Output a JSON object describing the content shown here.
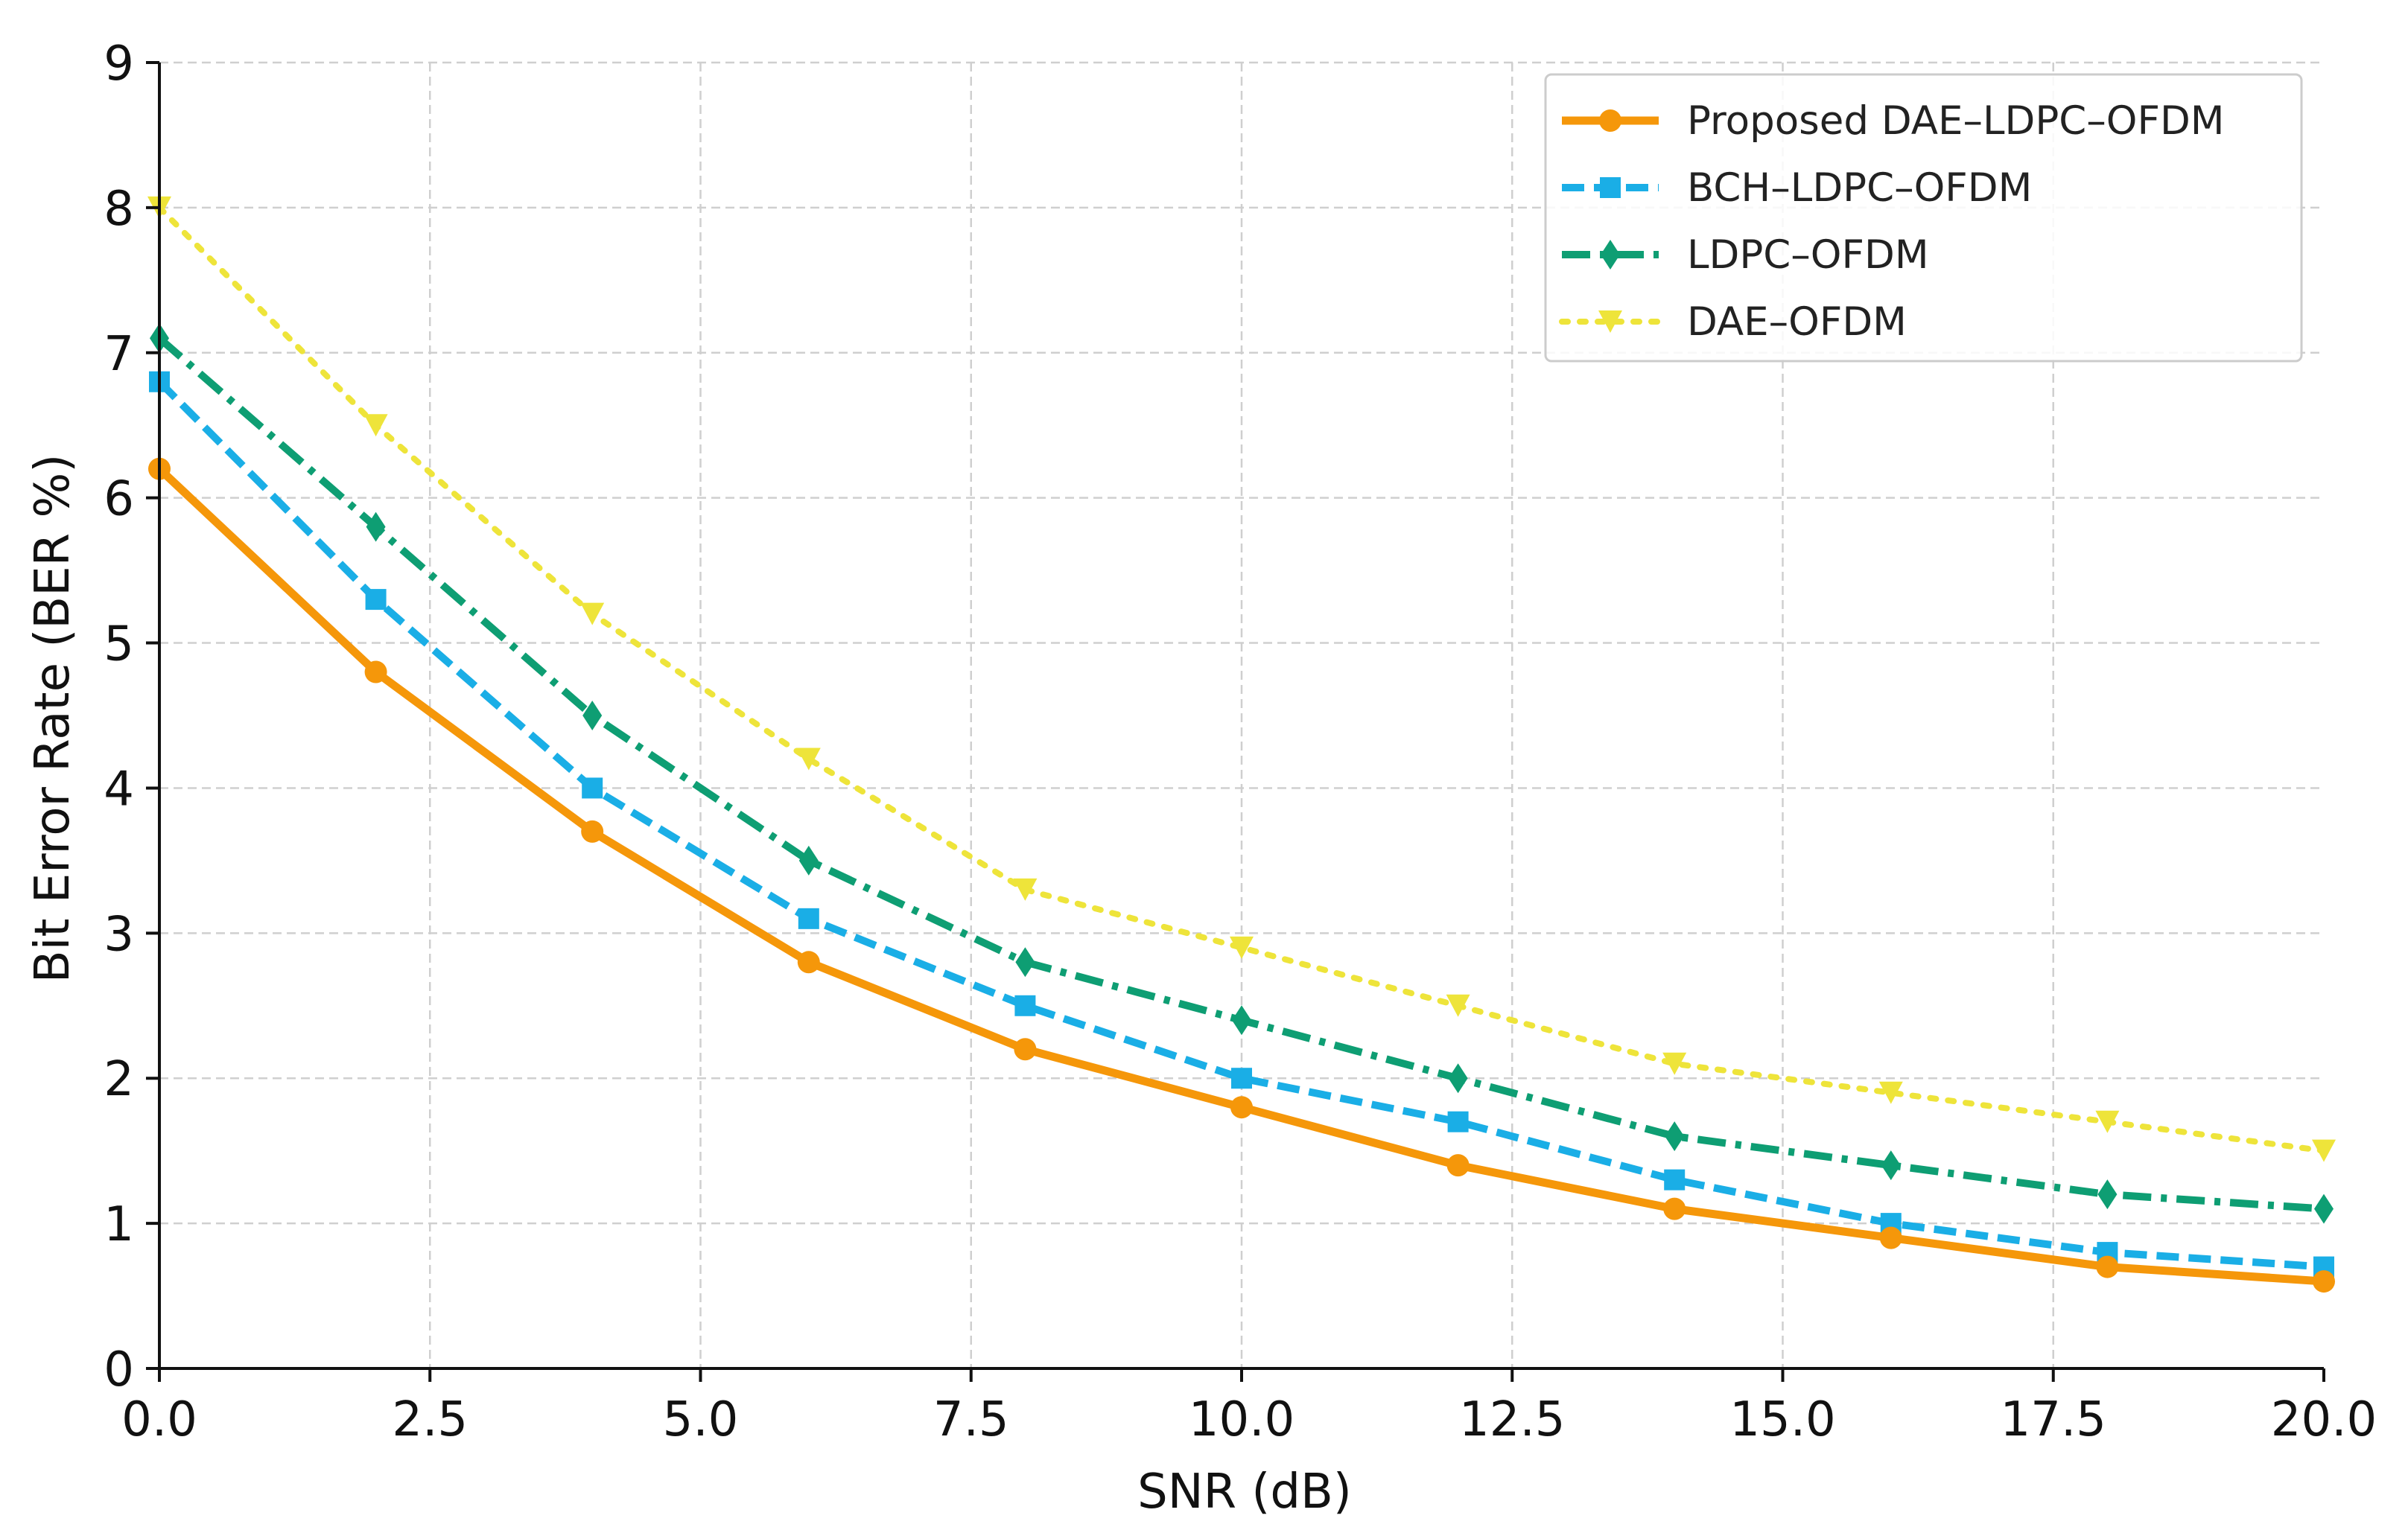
{
  "chart_data": {
    "type": "line",
    "title": "",
    "xlabel": "SNR (dB)",
    "ylabel": "Bit Error Rate (BER %)",
    "xlim": [
      0,
      20
    ],
    "ylim": [
      0,
      9
    ],
    "grid": true,
    "legend_position": "top-right",
    "x_ticks": [
      "0.0",
      "2.5",
      "5.0",
      "7.5",
      "10.0",
      "12.5",
      "15.0",
      "17.5",
      "20.0"
    ],
    "y_ticks": [
      "0",
      "1",
      "2",
      "3",
      "4",
      "5",
      "6",
      "7",
      "8",
      "9"
    ],
    "x": [
      0,
      2,
      4,
      6,
      8,
      10,
      12,
      14,
      16,
      18,
      20
    ],
    "series": [
      {
        "name": "Proposed DAE–LDPC–OFDM",
        "values": [
          6.2,
          4.8,
          3.7,
          2.8,
          2.2,
          1.8,
          1.4,
          1.1,
          0.9,
          0.7,
          0.6
        ],
        "color": "#F5970A",
        "line_style": "solid",
        "marker": "circle"
      },
      {
        "name": "BCH–LDPC–OFDM",
        "values": [
          6.8,
          5.3,
          4.0,
          3.1,
          2.5,
          2.0,
          1.7,
          1.3,
          1.0,
          0.8,
          0.7
        ],
        "color": "#1AAEE6",
        "line_style": "dashed",
        "marker": "square"
      },
      {
        "name": "LDPC–OFDM",
        "values": [
          7.1,
          5.8,
          4.5,
          3.5,
          2.8,
          2.4,
          2.0,
          1.6,
          1.4,
          1.2,
          1.1
        ],
        "color": "#0E9E73",
        "line_style": "dashdot",
        "marker": "diamond"
      },
      {
        "name": "DAE–OFDM",
        "values": [
          8.0,
          6.5,
          5.2,
          4.2,
          3.3,
          2.9,
          2.5,
          2.1,
          1.9,
          1.7,
          1.5
        ],
        "color": "#EEE43A",
        "line_style": "dotted",
        "marker": "triangle-down"
      }
    ]
  }
}
